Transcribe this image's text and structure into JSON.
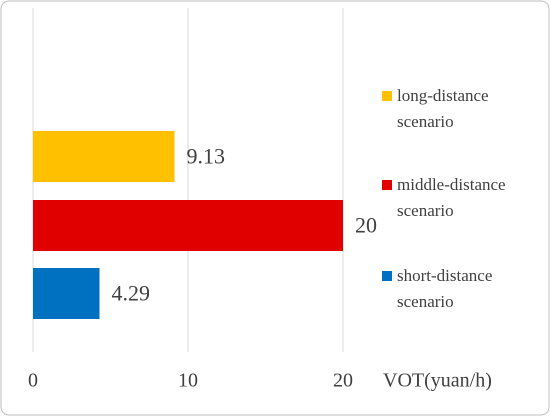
{
  "chart_data": {
    "type": "bar",
    "orientation": "horizontal",
    "categories": [
      "long-distance scenario",
      "middle-distance scenario",
      "short-distance scenario"
    ],
    "values": [
      9.13,
      20,
      4.29
    ],
    "colors": [
      "#FFC000",
      "#E00000",
      "#0070C0"
    ],
    "xlabel": "VOT(yuan/h)",
    "xlim": [
      0,
      20
    ],
    "xticks": [
      0,
      10,
      20
    ],
    "grid": true
  }
}
